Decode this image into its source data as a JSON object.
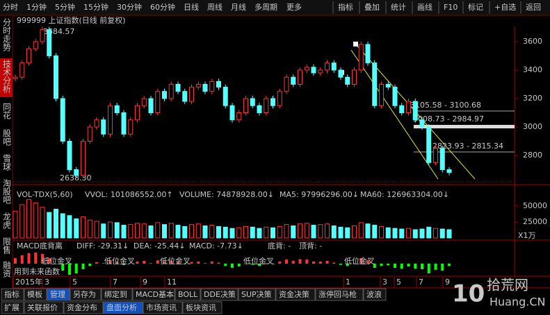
{
  "menu": {
    "left": [
      "分时",
      "1分钟",
      "5分钟",
      "15分钟",
      "30分钟",
      "60分钟",
      "日线",
      "周线",
      "月线",
      "多周期",
      "更多"
    ],
    "right": [
      "指标",
      "叠加",
      "统计",
      "画线",
      "F10",
      "标记",
      "+自选",
      "返回"
    ]
  },
  "side_tabs": [
    "分时走势",
    "技术分析",
    "同花",
    "股吧",
    "雪球",
    "淘股吧",
    "龙虎",
    "限售",
    "融资"
  ],
  "x_labels": [
    "2015年",
    "3",
    "5",
    "7",
    "9",
    "11",
    "1",
    "3",
    "5",
    "7",
    "9"
  ],
  "chart_data": [
    {
      "type": "candle",
      "title": "999999 上证指数(日线 前复权)",
      "annotations": [
        "3684.57",
        "2638.30",
        "3105.58 - 3100.68",
        "3008.73 - 2984.97",
        "2823.93 - 2815.34"
      ],
      "values": [
        3350,
        3450,
        3550,
        3600,
        3684,
        3500,
        3200,
        2900,
        2700,
        2660,
        2900,
        3000,
        3050,
        2950,
        3150,
        3100,
        2950,
        3050,
        3150,
        3200,
        3100,
        3250,
        3200,
        3300,
        3250,
        3180,
        3280,
        3300,
        3250,
        3320,
        3280,
        3150,
        3050,
        3100,
        3200,
        3150,
        3100,
        3200,
        3150,
        3250,
        3350,
        3300,
        3400,
        3420,
        3380,
        3400,
        3450,
        3400,
        3350,
        3300,
        3400,
        3580,
        3450,
        3150,
        3300,
        3280,
        3150,
        3100,
        3180,
        3050,
        3000,
        2750,
        2850,
        2700,
        2680
      ],
      "up_color": "#ff3232",
      "down_color": "#54ffff",
      "ylim": [
        2615,
        3707
      ],
      "yticks": [
        2800,
        3000,
        3200,
        3400,
        3600
      ]
    },
    {
      "type": "bar",
      "title": "VOL-TDX(5,60)",
      "readouts": [
        "VVOL: 101086552.00↑",
        "VOLUME: 74878928.00↓",
        "MA5: 97996296.00↓",
        "MA60: 126963304.00↓"
      ],
      "unit": "X1万",
      "values": [
        42000,
        52000,
        60000,
        55000,
        48000,
        40000,
        45000,
        38000,
        35000,
        30000,
        33000,
        28000,
        26000,
        22000,
        25000,
        24000,
        20000,
        21000,
        23000,
        22000,
        19000,
        24000,
        21000,
        23000,
        20000,
        18000,
        21000,
        22000,
        19000,
        20000,
        18000,
        17000,
        15000,
        16000,
        18000,
        17000,
        15000,
        17000,
        16000,
        18000,
        21000,
        19000,
        22000,
        23000,
        20000,
        21000,
        22000,
        19000,
        17000,
        16000,
        19000,
        24000,
        22000,
        20000,
        18000,
        16000,
        15000,
        14000,
        15000,
        13000,
        14000,
        17000,
        15000,
        14000,
        13000
      ],
      "ylim": [
        0,
        77000
      ],
      "yticks": [
        25000,
        50000
      ]
    },
    {
      "type": "bar",
      "title": "MACD底背离",
      "readouts": [
        "DIFF: -29.31↓",
        "DEA: -25.44↓",
        "MACD: -7.73↓",
        "底背: -",
        "顶背: -"
      ],
      "signals": [
        "低位金叉",
        "低位金叉",
        "低位金叉",
        "低位金叉",
        "低位金叉"
      ],
      "note": "用到未来函数",
      "values": [
        20,
        30,
        38,
        40,
        35,
        20,
        0,
        -25,
        -40,
        -35,
        -20,
        -8,
        5,
        2,
        10,
        8,
        -5,
        0,
        8,
        10,
        2,
        12,
        8,
        12,
        6,
        -2,
        6,
        8,
        2,
        8,
        4,
        -8,
        -15,
        -10,
        0,
        -4,
        -8,
        2,
        -2,
        8,
        15,
        10,
        16,
        15,
        8,
        8,
        10,
        4,
        -4,
        -8,
        2,
        20,
        12,
        -15,
        -8,
        -6,
        -15,
        -18,
        -10,
        -18,
        -20,
        -35,
        -22,
        -25,
        -8
      ],
      "ylim": [
        -45,
        45
      ]
    }
  ],
  "tabs_row1": [
    "指标",
    "模板",
    "管理",
    "另存为",
    "绑定到",
    "MACD基本",
    "BOLL",
    "DDE决策",
    "SUP决策",
    "资金决策",
    "涨停回马枪",
    "波浪"
  ],
  "tabs_row2": [
    "扩展",
    "关联报价",
    "资金分布",
    "盘面分析",
    "市场资讯",
    "板块资讯"
  ],
  "watermark": {
    "number": "10",
    "name": "拾荒网",
    "site": "Huang.CN"
  }
}
